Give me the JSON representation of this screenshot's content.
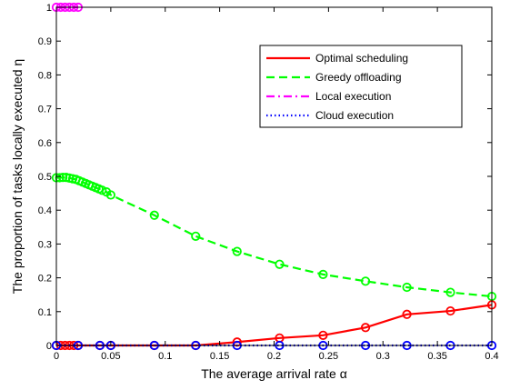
{
  "chart_data": {
    "type": "line",
    "xlabel": "The average arrival rate α",
    "ylabel": "The proportion of tasks locally executed η",
    "xlim": [
      0,
      0.4
    ],
    "ylim": [
      0,
      1
    ],
    "xticks": [
      "0",
      "0.05",
      "0.1",
      "0.15",
      "0.2",
      "0.25",
      "0.3",
      "0.35",
      "0.4"
    ],
    "yticks": [
      "0",
      "0.1",
      "0.2",
      "0.3",
      "0.4",
      "0.5",
      "0.6",
      "0.7",
      "0.8",
      "0.9",
      "1"
    ],
    "grid": false,
    "legend_position": "top-right",
    "series": [
      {
        "name": "Optimal scheduling",
        "color": "#ff0000",
        "linestyle": "solid",
        "x": [
          0,
          0.004,
          0.008,
          0.012,
          0.016,
          0.02,
          0.04,
          0.05,
          0.09,
          0.128,
          0.166,
          0.205,
          0.245,
          0.284,
          0.322,
          0.362,
          0.4
        ],
        "y": [
          0,
          0,
          0,
          0,
          0,
          0,
          0,
          0,
          0,
          0,
          0.01,
          0.022,
          0.03,
          0.053,
          0.092,
          0.102,
          0.12
        ]
      },
      {
        "name": "Greedy offloading",
        "color": "#00ff00",
        "linestyle": "dashed",
        "x": [
          0,
          0.003,
          0.006,
          0.009,
          0.012,
          0.015,
          0.018,
          0.021,
          0.024,
          0.027,
          0.03,
          0.033,
          0.036,
          0.039,
          0.042,
          0.046,
          0.05,
          0.09,
          0.128,
          0.166,
          0.205,
          0.245,
          0.284,
          0.322,
          0.362,
          0.4
        ],
        "y": [
          0.496,
          0.496,
          0.497,
          0.497,
          0.495,
          0.493,
          0.491,
          0.487,
          0.483,
          0.479,
          0.475,
          0.471,
          0.467,
          0.463,
          0.459,
          0.454,
          0.445,
          0.385,
          0.323,
          0.278,
          0.24,
          0.21,
          0.19,
          0.172,
          0.157,
          0.145
        ]
      },
      {
        "name": "Local execution",
        "color": "#ff00ff",
        "linestyle": "dashdot",
        "x": [
          0,
          0.004,
          0.008,
          0.012,
          0.016,
          0.02
        ],
        "y": [
          1,
          1,
          1,
          1,
          1,
          1
        ]
      },
      {
        "name": "Cloud execution",
        "color": "#0000ff",
        "linestyle": "dotted",
        "x": [
          0,
          0.02,
          0.04,
          0.05,
          0.09,
          0.128,
          0.166,
          0.205,
          0.245,
          0.284,
          0.322,
          0.362,
          0.4
        ],
        "y": [
          0,
          0,
          0,
          0,
          0,
          0,
          0,
          0,
          0,
          0,
          0,
          0,
          0
        ]
      }
    ]
  }
}
